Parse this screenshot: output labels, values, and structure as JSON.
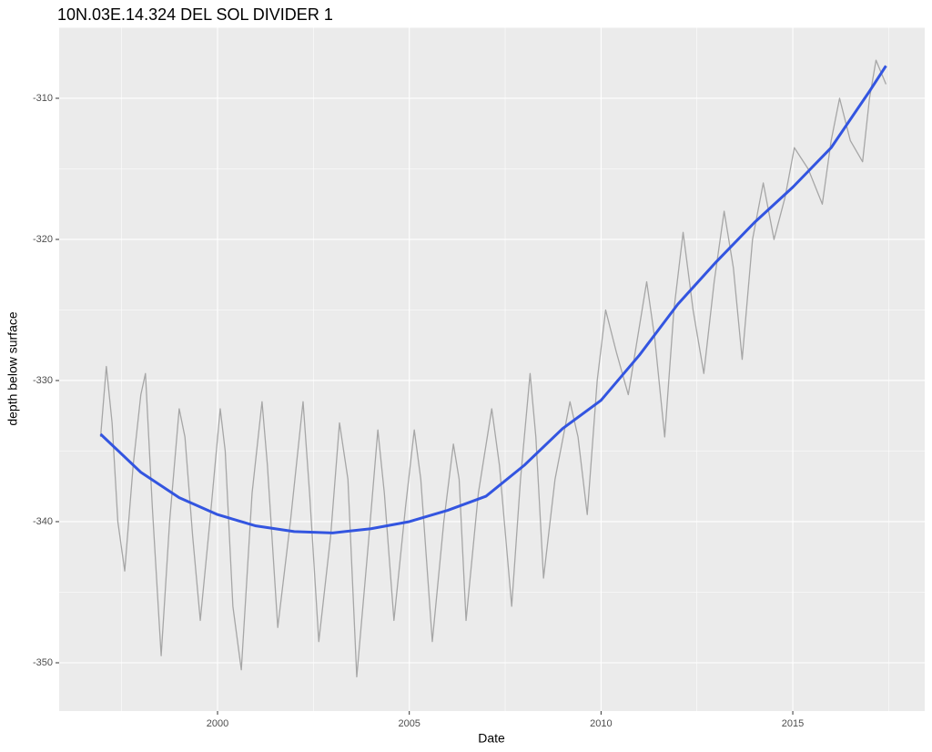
{
  "chart_data": {
    "type": "line",
    "title": "10N.03E.14.324 DEL SOL DIVIDER 1",
    "xlabel": "Date",
    "ylabel": "depth below surface",
    "xlim": [
      1995.87,
      2018.44
    ],
    "ylim": [
      -353.42,
      -304.97
    ],
    "xticks": [
      2000,
      2005,
      2010,
      2015
    ],
    "yticks": [
      -350,
      -340,
      -330,
      -320,
      -310
    ],
    "xminor": [
      1997.5,
      2002.5,
      2007.5,
      2012.5,
      2017.5
    ],
    "yminor": [
      -345,
      -335,
      -325,
      -315,
      -305
    ],
    "grid": true,
    "background": "#ebebeb",
    "series": [
      {
        "color": "#a6a6a6",
        "x": [
          1996.95,
          1997.1,
          1997.25,
          1997.4,
          1997.58,
          1997.8,
          1998.0,
          1998.12,
          1998.3,
          1998.53,
          1998.75,
          1999.0,
          1999.15,
          1999.35,
          1999.55,
          1999.8,
          2000.07,
          2000.2,
          2000.4,
          2000.62,
          2000.9,
          2001.16,
          2001.3,
          2001.57,
          2001.9,
          2002.23,
          2002.4,
          2002.64,
          2002.95,
          2003.18,
          2003.4,
          2003.63,
          2003.95,
          2004.18,
          2004.35,
          2004.6,
          2004.9,
          2005.13,
          2005.3,
          2005.6,
          2005.9,
          2006.15,
          2006.3,
          2006.48,
          2006.8,
          2007.15,
          2007.35,
          2007.67,
          2007.9,
          2008.15,
          2008.3,
          2008.5,
          2008.8,
          2009.19,
          2009.4,
          2009.64,
          2009.9,
          2010.12,
          2010.4,
          2010.71,
          2010.95,
          2011.19,
          2011.4,
          2011.66,
          2011.9,
          2012.14,
          2012.4,
          2012.68,
          2012.95,
          2013.21,
          2013.45,
          2013.68,
          2013.95,
          2014.23,
          2014.51,
          2014.8,
          2015.04,
          2015.4,
          2015.77,
          2016.0,
          2016.22,
          2016.5,
          2016.82,
          2017.0,
          2017.17,
          2017.43
        ],
        "values": [
          -334,
          -329,
          -333,
          -340,
          -343.5,
          -336,
          -331,
          -329.5,
          -339,
          -349.5,
          -340,
          -332,
          -334,
          -341,
          -347,
          -340,
          -332,
          -335,
          -346,
          -350.5,
          -338,
          -331.5,
          -336,
          -347.5,
          -340,
          -331.5,
          -338,
          -348.5,
          -341,
          -333,
          -337,
          -351,
          -341,
          -333.5,
          -338,
          -347,
          -339,
          -333.5,
          -337,
          -348.5,
          -340,
          -334.5,
          -337,
          -347,
          -338,
          -332,
          -336,
          -346,
          -337,
          -329.5,
          -334,
          -344,
          -337,
          -331.5,
          -334,
          -339.5,
          -330,
          -325,
          -328,
          -331,
          -327,
          -323,
          -327,
          -334,
          -325,
          -319.5,
          -325,
          -329.5,
          -323,
          -318,
          -322,
          -328.5,
          -320,
          -316,
          -320,
          -317,
          -313.5,
          -315,
          -317.5,
          -313,
          -310,
          -313,
          -314.5,
          -310,
          -307.3,
          -309
        ]
      },
      {
        "color": "#3355e0",
        "x": [
          1996.95,
          1998,
          1999,
          2000,
          2001,
          2002,
          2003,
          2004,
          2005,
          2006,
          2007,
          2008,
          2009,
          2010,
          2011,
          2012,
          2013,
          2014,
          2015,
          2016,
          2017,
          2017.43
        ],
        "values": [
          -333.8,
          -336.5,
          -338.3,
          -339.5,
          -340.3,
          -340.7,
          -340.8,
          -340.5,
          -340,
          -339.2,
          -338.2,
          -336,
          -333.4,
          -331.4,
          -328.2,
          -324.6,
          -321.6,
          -318.8,
          -316.3,
          -313.5,
          -309.5,
          -307.7
        ]
      }
    ]
  }
}
